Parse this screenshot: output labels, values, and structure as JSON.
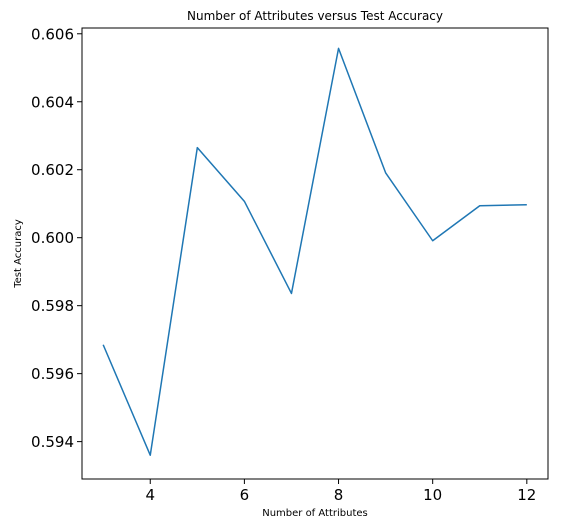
{
  "chart_data": {
    "type": "line",
    "title": "Number of Attributes versus Test Accuracy",
    "xlabel": "Number of Attributes",
    "ylabel": "Test Accuracy",
    "x": [
      3,
      4,
      5,
      6,
      7,
      8,
      9,
      10,
      11,
      12
    ],
    "series": [
      {
        "name": "",
        "color": "#1f77b4",
        "values": [
          0.59685,
          0.5936,
          0.60265,
          0.60107,
          0.59836,
          0.60557,
          0.60191,
          0.59991,
          0.60094,
          0.60097
        ]
      }
    ],
    "xlim": [
      2.55,
      12.45
    ],
    "ylim": [
      0.5929,
      0.60617
    ],
    "xticks": [
      4,
      6,
      8,
      10,
      12
    ],
    "xtick_labels": [
      "4",
      "6",
      "8",
      "10",
      "12"
    ],
    "yticks": [
      0.594,
      0.596,
      0.598,
      0.6,
      0.602,
      0.604,
      0.606
    ],
    "ytick_labels": [
      "0.594",
      "0.596",
      "0.598",
      "0.600",
      "0.602",
      "0.604",
      "0.606"
    ],
    "grid": false,
    "legend": "none"
  }
}
